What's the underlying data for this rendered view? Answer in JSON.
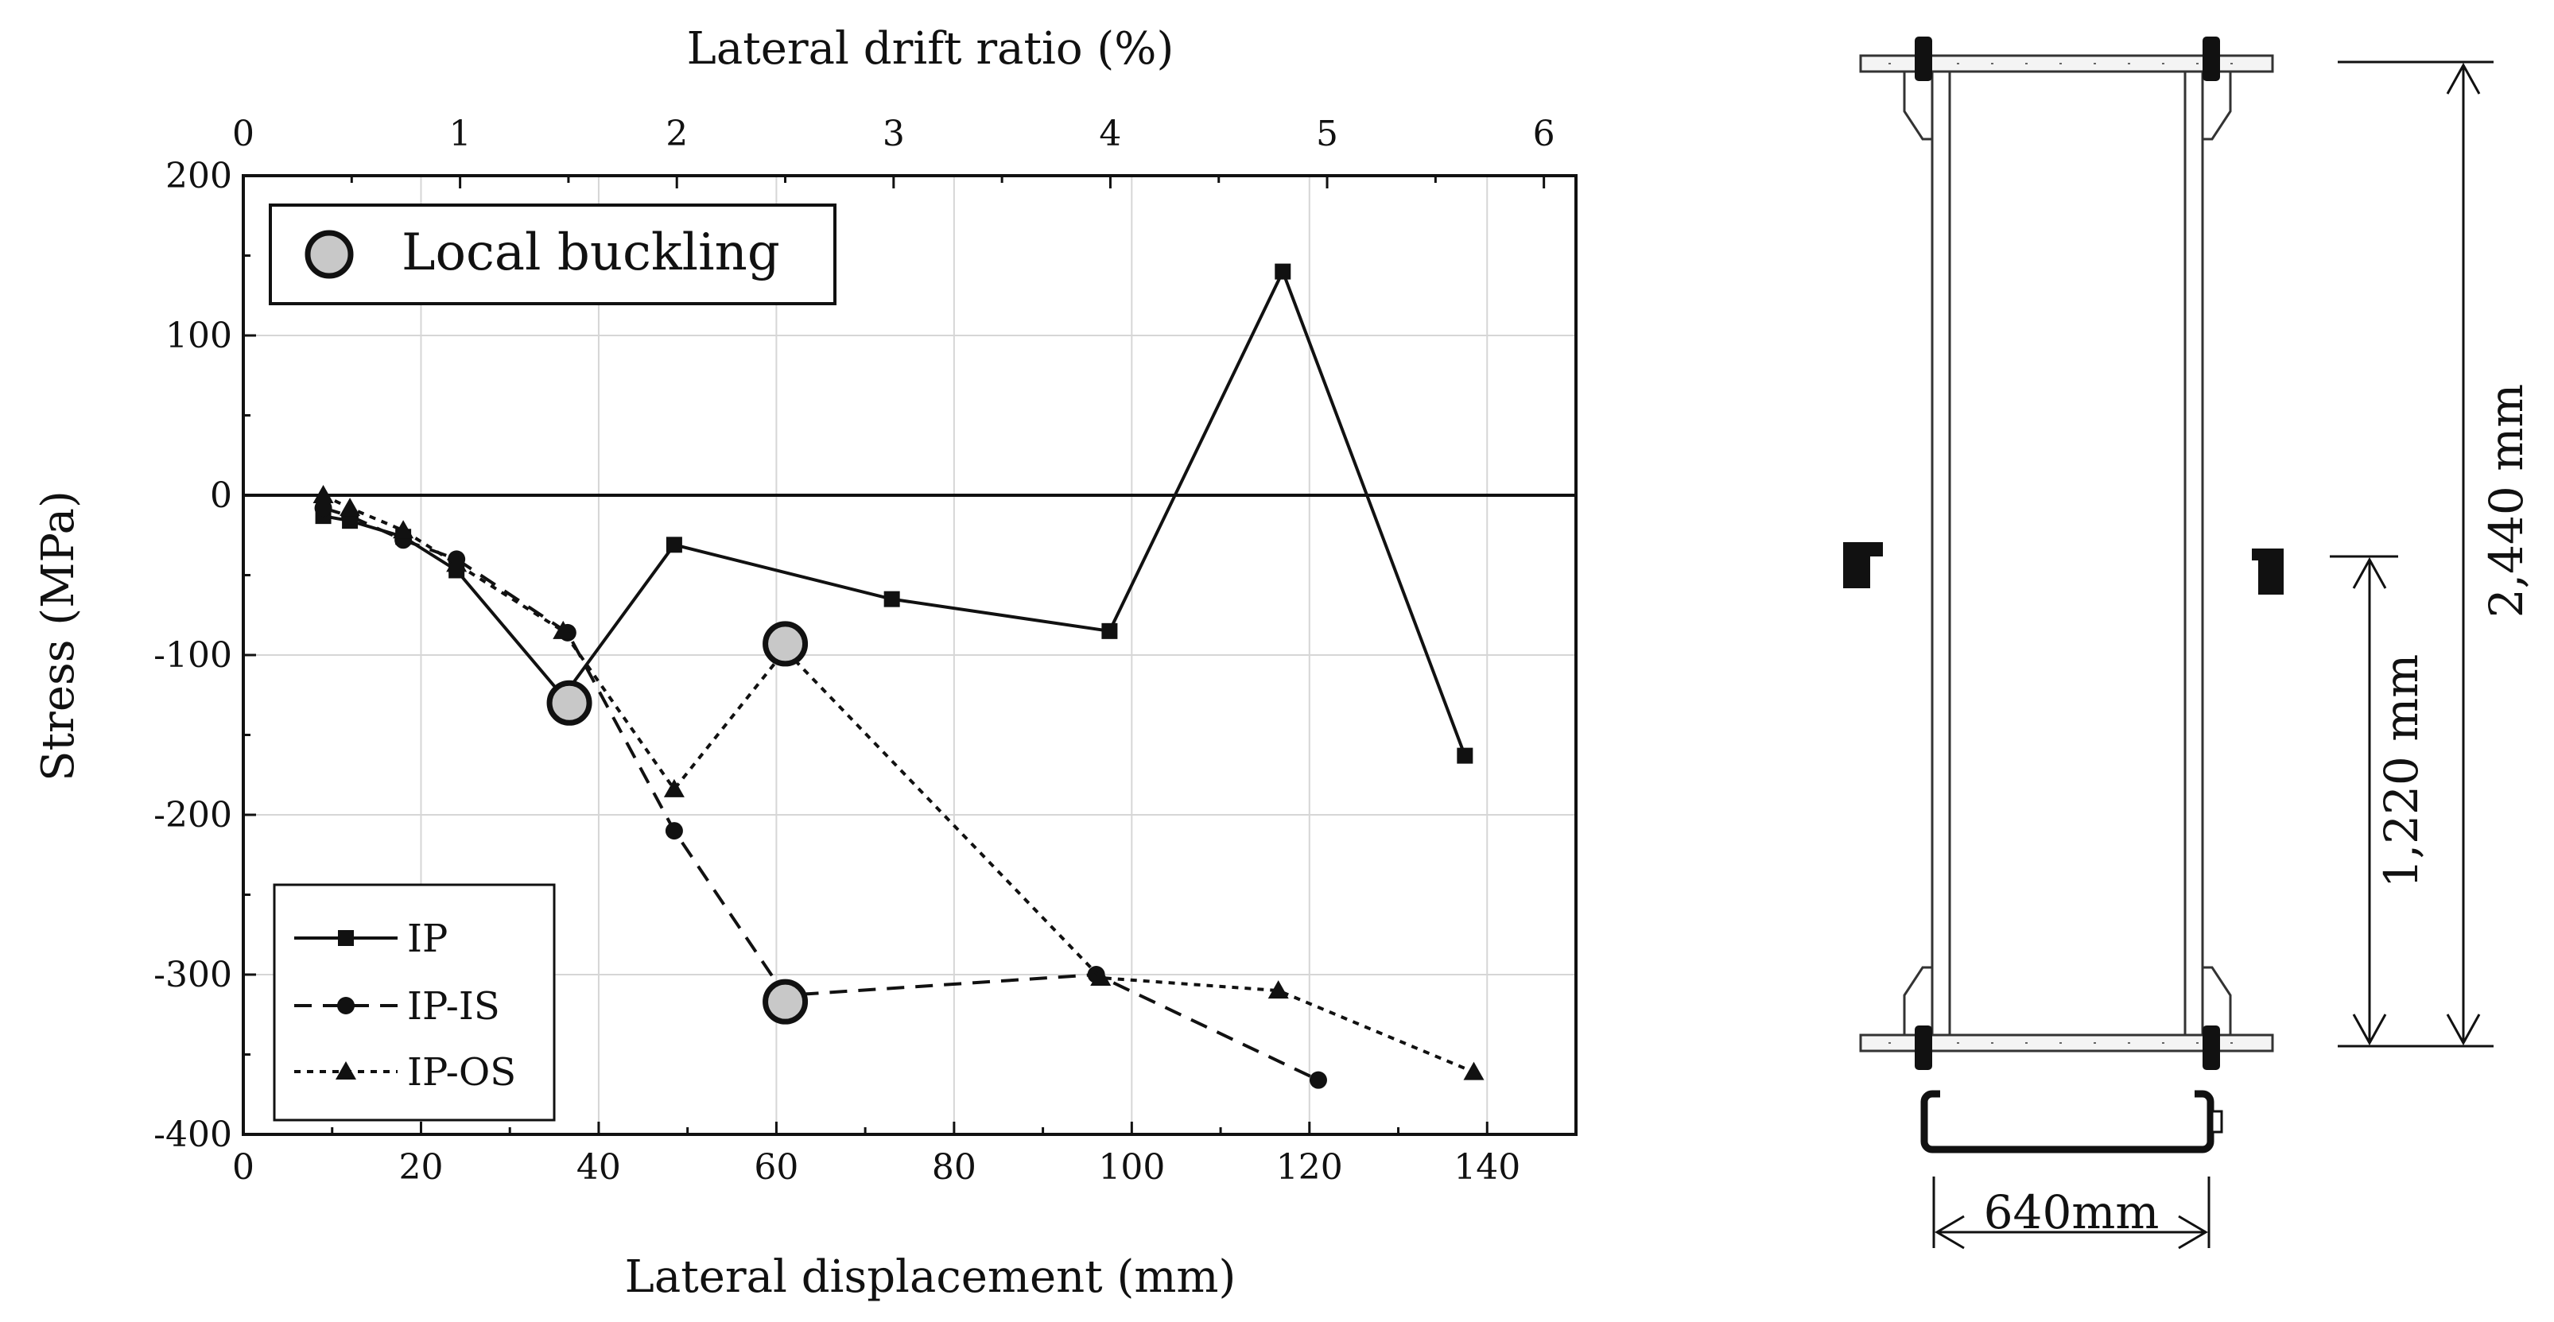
{
  "chart_data": {
    "type": "line",
    "xlabel": "Lateral displacement (mm)",
    "ylabel": "Stress (MPa)",
    "x2label": "Lateral drift ratio (%)",
    "xlim": [
      0,
      150
    ],
    "ylim": [
      -400,
      200
    ],
    "x2lim": [
      0,
      6.148
    ],
    "x_ticks": [
      0,
      20,
      40,
      60,
      80,
      100,
      120,
      140
    ],
    "y_ticks": [
      200,
      100,
      0,
      -100,
      -200,
      -300,
      -400
    ],
    "x2_ticks": [
      0,
      1,
      2,
      3,
      4,
      5,
      6
    ],
    "x_tick_labels": [
      "0",
      "20",
      "40",
      "60",
      "80",
      "100",
      "120",
      "140"
    ],
    "y_tick_labels": [
      "200",
      "100",
      "0",
      "-100",
      "-200",
      "-300",
      "-400"
    ],
    "x2_tick_labels": [
      "0",
      "1",
      "2",
      "3",
      "4",
      "5",
      "6"
    ],
    "grid": true,
    "series": [
      {
        "name": "IP",
        "marker": "square",
        "dash": "solid",
        "points": [
          [
            9,
            -13
          ],
          [
            12,
            -16
          ],
          [
            18,
            -26
          ],
          [
            24,
            -47
          ],
          [
            36,
            -126
          ],
          [
            48.5,
            -31
          ],
          [
            73,
            -65
          ],
          [
            97.5,
            -85
          ],
          [
            117,
            140
          ],
          [
            137.5,
            -163
          ]
        ]
      },
      {
        "name": "IP-IS",
        "marker": "circle",
        "dash": "dashed",
        "points": [
          [
            9,
            -8
          ],
          [
            12,
            -13
          ],
          [
            18,
            -28
          ],
          [
            24,
            -40
          ],
          [
            36.5,
            -86
          ],
          [
            48.5,
            -210
          ],
          [
            61,
            -313
          ],
          [
            96,
            -300
          ],
          [
            121,
            -366
          ]
        ]
      },
      {
        "name": "IP-OS",
        "marker": "triangle",
        "dash": "dotted",
        "points": [
          [
            9,
            0
          ],
          [
            12,
            -8
          ],
          [
            18,
            -22
          ],
          [
            24,
            -43
          ],
          [
            36,
            -85
          ],
          [
            48.5,
            -184
          ],
          [
            61,
            -97
          ],
          [
            96.5,
            -302
          ],
          [
            116.5,
            -310
          ],
          [
            138.5,
            -361
          ]
        ]
      }
    ],
    "local_buckling_points": [
      [
        36.7,
        -130
      ],
      [
        61,
        -93
      ],
      [
        61,
        -317
      ]
    ],
    "annotation_legend": "Local buckling",
    "legend_placement": "bottom-left"
  },
  "specimen": {
    "height_total": "2,440 mm",
    "height_half": "1,220 mm",
    "width": "640mm"
  },
  "colors": {
    "line": "#111111",
    "grid": "#d6d6d6",
    "buckling_fill": "#c8c8c8"
  }
}
